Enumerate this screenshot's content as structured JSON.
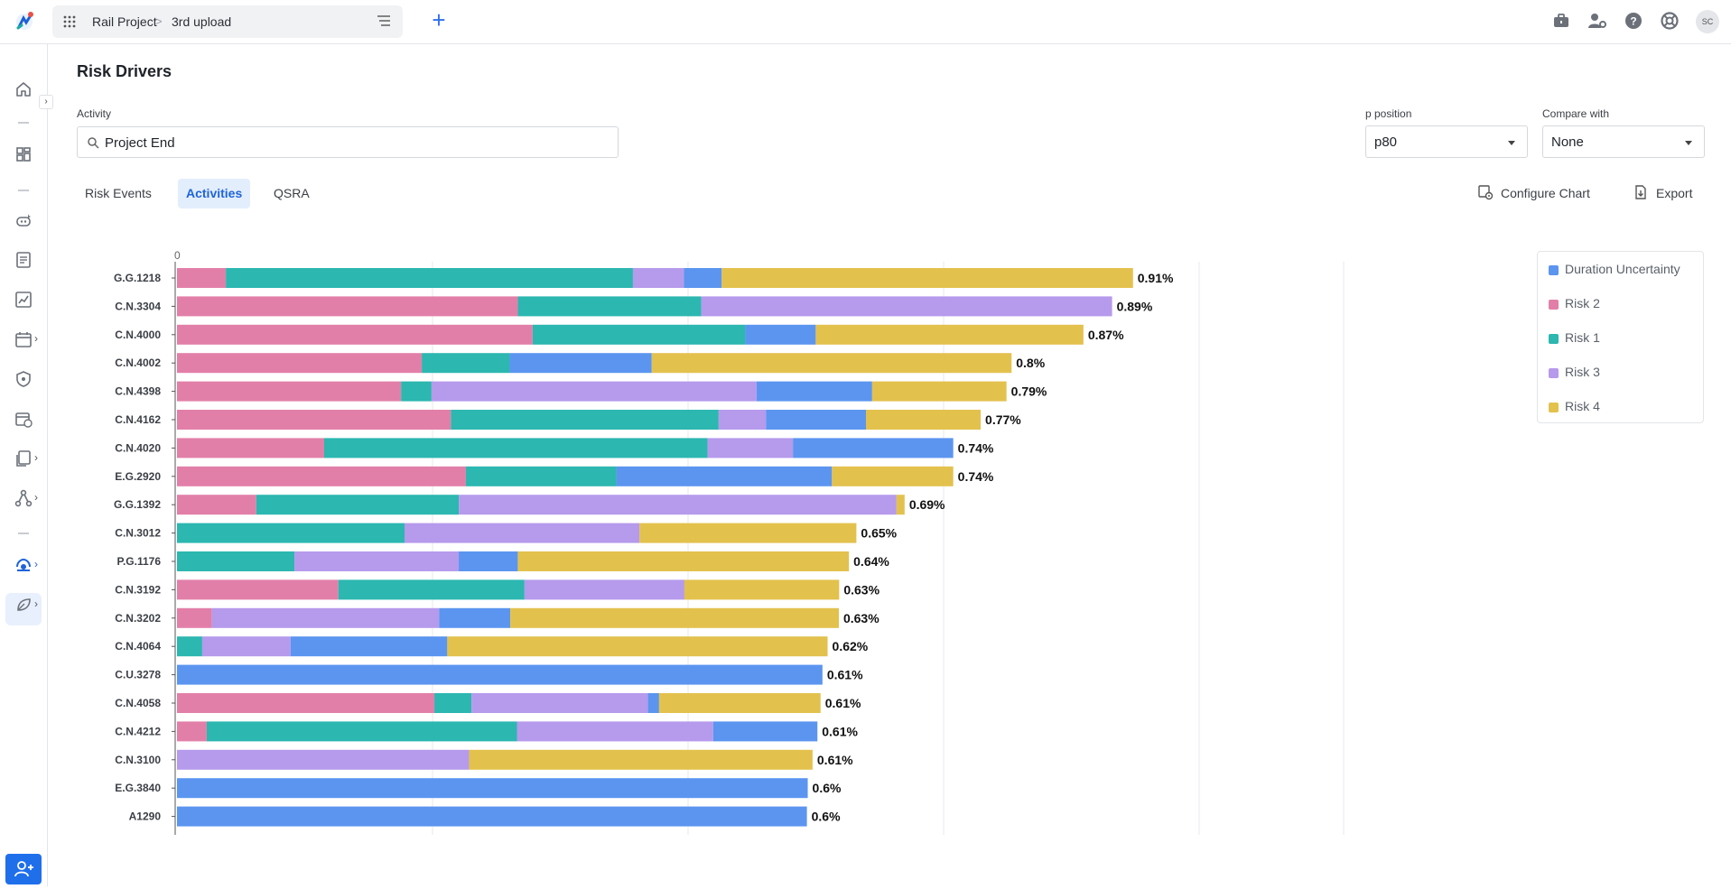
{
  "topbar": {
    "breadcrumb_project": "Rail Project",
    "breadcrumb_sep": ">",
    "breadcrumb_upload": "3rd upload",
    "add_label": "+",
    "avatar_initials": "SC"
  },
  "page": {
    "title": "Risk Drivers",
    "activity_label": "Activity",
    "activity_value": "Project End",
    "p_position_label": "p position",
    "p_position_value": "p80",
    "compare_label": "Compare with",
    "compare_value": "None"
  },
  "tabs": [
    {
      "label": "Risk Events"
    },
    {
      "label": "Activities"
    },
    {
      "label": "QSRA"
    }
  ],
  "toolbar": {
    "configure_label": "Configure Chart",
    "export_label": "Export"
  },
  "colors": {
    "Duration Uncertainty": "#5b95f0",
    "Risk 2": "#e27fa8",
    "Risk 1": "#2cb7b0",
    "Risk 3": "#b69aec",
    "Risk 4": "#e3c14d"
  },
  "chart_data": {
    "type": "bar",
    "orientation": "horizontal",
    "stacked": true,
    "x_start_label": "0",
    "xlim": [
      0,
      1.04
    ],
    "legend_position": "right",
    "legend": [
      "Duration Uncertainty",
      "Risk 2",
      "Risk 1",
      "Risk 3",
      "Risk 4"
    ],
    "rows": [
      {
        "label": "G.G.1218",
        "total": "0.91%",
        "segments": [
          [
            "Risk 2",
            0.0465
          ],
          [
            "Risk 1",
            0.3875
          ],
          [
            "Risk 3",
            0.0485
          ],
          [
            "Duration Uncertainty",
            0.036
          ],
          [
            "Risk 4",
            0.3915
          ]
        ]
      },
      {
        "label": "C.N.3304",
        "total": "0.89%",
        "segments": [
          [
            "Risk 2",
            0.3245
          ],
          [
            "Risk 1",
            0.1745
          ],
          [
            "Risk 3",
            0.3911
          ]
        ]
      },
      {
        "label": "C.N.4000",
        "total": "0.87%",
        "segments": [
          [
            "Risk 2",
            0.3385
          ],
          [
            "Risk 1",
            0.2025
          ],
          [
            "Duration Uncertainty",
            0.067
          ],
          [
            "Risk 4",
            0.2548
          ]
        ]
      },
      {
        "label": "C.N.4002",
        "total": "0.8%",
        "segments": [
          [
            "Risk 2",
            0.233
          ],
          [
            "Risk 1",
            0.0837
          ],
          [
            "Duration Uncertainty",
            0.1352
          ],
          [
            "Risk 4",
            0.3425
          ]
        ]
      },
      {
        "label": "C.N.4398",
        "total": "0.79%",
        "segments": [
          [
            "Risk 2",
            0.2133
          ],
          [
            "Risk 1",
            0.029
          ],
          [
            "Risk 3",
            0.3094
          ],
          [
            "Duration Uncertainty",
            0.11
          ],
          [
            "Risk 4",
            0.1279
          ]
        ]
      },
      {
        "label": "C.N.4162",
        "total": "0.77%",
        "segments": [
          [
            "Risk 2",
            0.2607
          ],
          [
            "Risk 1",
            0.2549
          ],
          [
            "Risk 3",
            0.045
          ],
          [
            "Duration Uncertainty",
            0.0952
          ],
          [
            "Risk 4",
            0.1092
          ]
        ]
      },
      {
        "label": "C.N.4020",
        "total": "0.74%",
        "segments": [
          [
            "Risk 2",
            0.1401
          ],
          [
            "Risk 1",
            0.3649
          ],
          [
            "Risk 3",
            0.0813
          ],
          [
            "Duration Uncertainty",
            0.1526
          ]
        ]
      },
      {
        "label": "E.G.2920",
        "total": "0.74%",
        "segments": [
          [
            "Risk 2",
            0.275
          ],
          [
            "Risk 1",
            0.1432
          ],
          [
            "Duration Uncertainty",
            0.2052
          ],
          [
            "Risk 4",
            0.1155
          ]
        ]
      },
      {
        "label": "G.G.1392",
        "total": "0.69%",
        "segments": [
          [
            "Risk 2",
            0.0755
          ],
          [
            "Risk 1",
            0.1929
          ],
          [
            "Risk 3",
            0.4165
          ],
          [
            "Risk 4",
            0.0077
          ]
        ]
      },
      {
        "label": "C.N.3012",
        "total": "0.65%",
        "segments": [
          [
            "Risk 1",
            0.2166
          ],
          [
            "Risk 3",
            0.2237
          ],
          [
            "Risk 4",
            0.2064
          ]
        ]
      },
      {
        "label": "P.G.1176",
        "total": "0.64%",
        "segments": [
          [
            "Risk 1",
            0.1118
          ],
          [
            "Risk 3",
            0.1564
          ],
          [
            "Duration Uncertainty",
            0.0562
          ],
          [
            "Risk 4",
            0.3152
          ]
        ]
      },
      {
        "label": "C.N.3192",
        "total": "0.63%",
        "segments": [
          [
            "Risk 2",
            0.1536
          ],
          [
            "Risk 1",
            0.1772
          ],
          [
            "Risk 3",
            0.1522
          ],
          [
            "Risk 4",
            0.1473
          ]
        ]
      },
      {
        "label": "C.N.3202",
        "total": "0.63%",
        "segments": [
          [
            "Risk 2",
            0.0332
          ],
          [
            "Risk 3",
            0.2163
          ],
          [
            "Duration Uncertainty",
            0.0677
          ],
          [
            "Risk 4",
            0.3128
          ]
        ]
      },
      {
        "label": "C.N.4064",
        "total": "0.62%",
        "segments": [
          [
            "Risk 1",
            0.024
          ],
          [
            "Risk 3",
            0.0842
          ],
          [
            "Duration Uncertainty",
            0.1491
          ],
          [
            "Risk 4",
            0.362
          ]
        ]
      },
      {
        "label": "C.U.3278",
        "total": "0.61%",
        "segments": [
          [
            "Duration Uncertainty",
            0.6144
          ]
        ]
      },
      {
        "label": "C.N.4058",
        "total": "0.61%",
        "segments": [
          [
            "Risk 2",
            0.245
          ],
          [
            "Risk 1",
            0.0353
          ],
          [
            "Risk 3",
            0.168
          ],
          [
            "Duration Uncertainty",
            0.0106
          ],
          [
            "Risk 4",
            0.1537
          ]
        ]
      },
      {
        "label": "C.N.4212",
        "total": "0.61%",
        "segments": [
          [
            "Risk 2",
            0.0283
          ],
          [
            "Risk 1",
            0.2953
          ],
          [
            "Risk 3",
            0.1868
          ],
          [
            "Duration Uncertainty",
            0.0992
          ]
        ]
      },
      {
        "label": "C.N.3100",
        "total": "0.61%",
        "segments": [
          [
            "Risk 3",
            0.278
          ],
          [
            "Risk 4",
            0.327
          ]
        ]
      },
      {
        "label": "E.G.3840",
        "total": "0.6%",
        "segments": [
          [
            "Duration Uncertainty",
            0.6004
          ]
        ]
      },
      {
        "label": "A1290",
        "total": "0.6%",
        "segments": [
          [
            "Duration Uncertainty",
            0.5996
          ]
        ]
      }
    ]
  }
}
